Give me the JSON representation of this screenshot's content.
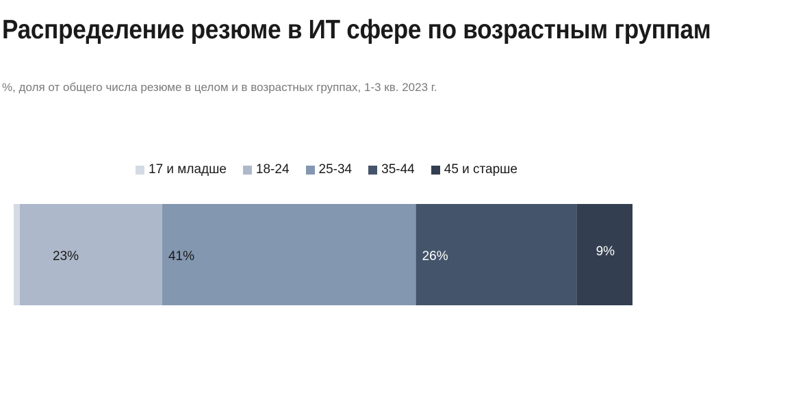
{
  "chart_data": {
    "type": "bar",
    "orientation": "horizontal-stacked",
    "title": "Распределение резюме в ИТ сфере по возрастным группам",
    "subtitle": "%, доля от общего числа резюме в целом и в возрастных группах, 1-3 кв. 2023 г.",
    "legend_position": "top",
    "series": [
      {
        "name": "17 и младше",
        "value": 1,
        "label": "",
        "color": "#d5dbe4",
        "label_color": "#1a1a1a"
      },
      {
        "name": "18-24",
        "value": 23,
        "label": "23%",
        "color": "#adb8ca",
        "label_color": "#1a1a1a"
      },
      {
        "name": "25-34",
        "value": 41,
        "label": "41%",
        "color": "#8497b0",
        "label_color": "#1a1a1a"
      },
      {
        "name": "35-44",
        "value": 26,
        "label": "26%",
        "color": "#44546a",
        "label_color": "#ffffff"
      },
      {
        "name": "45 и старше",
        "value": 9,
        "label": "9%",
        "color": "#333f50",
        "label_color": "#ffffff"
      }
    ],
    "xlim": [
      0,
      100
    ],
    "grid": false
  }
}
